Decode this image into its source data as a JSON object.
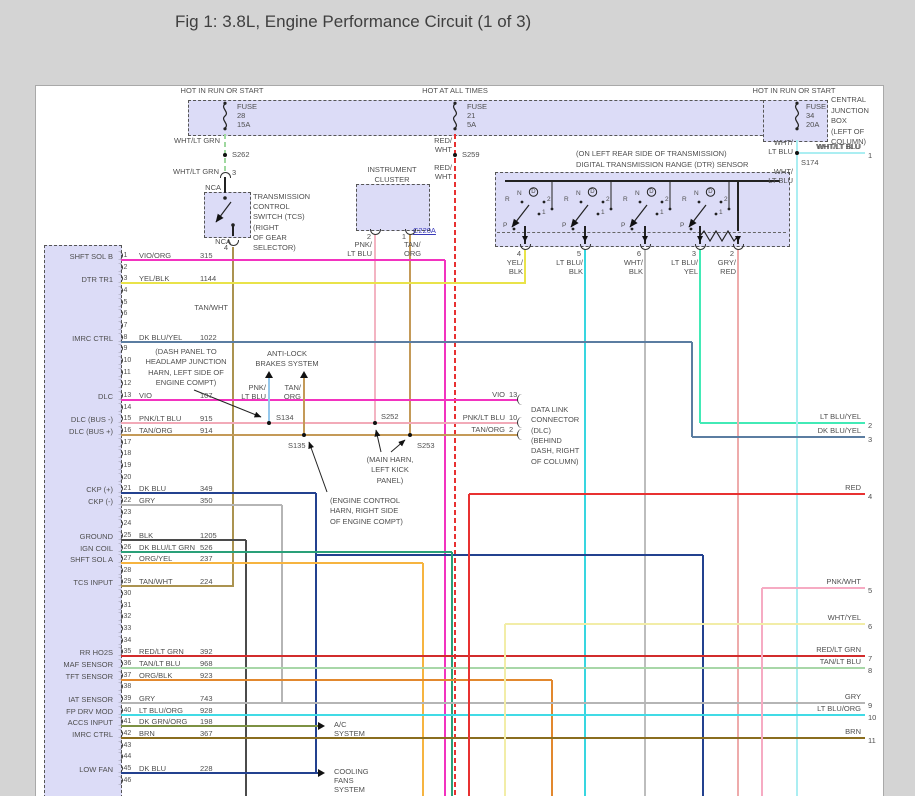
{
  "title": "Fig 1: 3.8L, Engine Performance Circuit (1 of 3)",
  "rails": [
    "HOT IN RUN OR START",
    "HOT AT ALL TIMES",
    "HOT IN RUN OR START"
  ],
  "fuses": [
    {
      "name": "FUSE",
      "num": "28",
      "amp": "15A"
    },
    {
      "name": "FUSE",
      "num": "21",
      "amp": "5A"
    },
    {
      "name": "FUSE",
      "num": "34",
      "amp": "20A"
    }
  ],
  "cjb": [
    "CENTRAL",
    "JUNCTION",
    "BOX",
    "(LEFT OF",
    "COLUMN)"
  ],
  "tcs": {
    "desc": [
      "TRANSMISSION",
      "CONTROL",
      "SWITCH (TCS)",
      "(RIGHT",
      "OF GEAR",
      "SELECTOR)"
    ],
    "nca": "NCA",
    "pin_top": "3",
    "pin_bottom": "4",
    "wire_top": "WHT/LT GRN",
    "vert_label": "TAN/WHT"
  },
  "red_wht": [
    "RED/",
    "WHT"
  ],
  "wht_lt_blu": [
    "WHT/",
    "LT BLU"
  ],
  "wht_lt_blu_h": "WHT/LT BLU",
  "instrument_cluster": {
    "title": [
      "INSTRUMENT",
      "CLUSTER"
    ],
    "connector": "C220A",
    "pins": [
      {
        "num": "2",
        "label": [
          "PNK/",
          "LT BLU"
        ]
      },
      {
        "num": "1",
        "label": [
          "TAN/",
          "ORG"
        ]
      }
    ]
  },
  "dtr": {
    "note": "(ON LEFT REAR SIDE OF TRANSMISSION)",
    "title": "DIGITAL TRANSMISSION RANGE (DTR) SENSOR",
    "positions": [
      "R",
      "N",
      "D",
      "2",
      "1",
      "P"
    ],
    "groups": 4,
    "pins": [
      {
        "num": "4",
        "label": [
          "YEL/",
          "BLK"
        ]
      },
      {
        "num": "5",
        "label": [
          "LT BLU/",
          "BLK"
        ]
      },
      {
        "num": "6",
        "label": [
          "WHT/",
          "BLK"
        ]
      },
      {
        "num": "3",
        "label": [
          "LT BLU/",
          "YEL"
        ]
      },
      {
        "num": "2",
        "label": [
          "GRY/",
          "RED"
        ]
      }
    ]
  },
  "splices": {
    "s262": "S262",
    "s259": "S259",
    "s174": "S174",
    "s134": "S134",
    "s135": "S135",
    "s252": "S252",
    "s253": "S253"
  },
  "abs": {
    "title": [
      "ANTI-LOCK",
      "BRAKES SYSTEM"
    ],
    "wires": [
      [
        "PNK/",
        "LT BLU"
      ],
      [
        "TAN/",
        "ORG"
      ]
    ]
  },
  "notes": {
    "dash_panel": [
      "(DASH PANEL TO",
      "HEADLAMP JUNCTION",
      "HARN, LEFT SIDE OF",
      "ENGINE COMPT)"
    ],
    "main_harn": [
      "(MAIN HARN,",
      "LEFT KICK",
      "PANEL)"
    ],
    "engine_control": [
      "(ENGINE CONTROL",
      "HARN, RIGHT SIDE",
      "OF ENGINE COMPT)"
    ]
  },
  "dlc": {
    "text": [
      "DATA LINK",
      "CONNECTOR",
      "(DLC)",
      "(BEHIND",
      "DASH, RIGHT",
      "OF COLUMN)"
    ],
    "pins": [
      {
        "wire": "VIO",
        "num": "13"
      },
      {
        "wire": "PNK/LT BLU",
        "num": "10"
      },
      {
        "wire": "TAN/ORG",
        "num": "2"
      }
    ]
  },
  "left_connector": {
    "pin_count": 46,
    "rows": [
      {
        "pin": 1,
        "label": "SHFT SOL B",
        "wire": "VIO/ORG",
        "circuit": "315",
        "color": "magenta"
      },
      {
        "pin": 3,
        "label": "DTR TR1",
        "wire": "YEL/BLK",
        "circuit": "1144",
        "color": "yellow"
      },
      {
        "pin": 8,
        "label": "IMRC CTRL",
        "wire": "DK BLU/YEL",
        "circuit": "1022",
        "color": "steel"
      },
      {
        "pin": 13,
        "label": "DLC",
        "wire": "VIO",
        "circuit": "107",
        "color": "magenta"
      },
      {
        "pin": 15,
        "label": "DLC (BUS -)",
        "wire": "PNK/LT BLU",
        "circuit": "915",
        "color": "pink"
      },
      {
        "pin": 16,
        "label": "DLC (BUS +)",
        "wire": "TAN/ORG",
        "circuit": "914",
        "color": "tan"
      },
      {
        "pin": 21,
        "label": "CKP (+)",
        "wire": "DK BLU",
        "circuit": "349",
        "color": "navy"
      },
      {
        "pin": 22,
        "label": "CKP (-)",
        "wire": "GRY",
        "circuit": "350",
        "color": "gray"
      },
      {
        "pin": 25,
        "label": "GROUND",
        "wire": "BLK",
        "circuit": "1205",
        "color": "black"
      },
      {
        "pin": 26,
        "label": "IGN COIL",
        "wire": "DK BLU/LT GRN",
        "circuit": "526",
        "color": "teal"
      },
      {
        "pin": 27,
        "label": "SHFT SOL A",
        "wire": "ORG/YEL",
        "circuit": "237",
        "color": "orange"
      },
      {
        "pin": 29,
        "label": "TCS INPUT",
        "wire": "TAN/WHT",
        "circuit": "224",
        "color": "tanwht"
      },
      {
        "pin": 35,
        "label": "RR HO2S",
        "wire": "RED/LT GRN",
        "circuit": "392",
        "color": "darkred"
      },
      {
        "pin": 36,
        "label": "MAF SENSOR",
        "wire": "TAN/LT BLU",
        "circuit": "968",
        "color": "palegreen"
      },
      {
        "pin": 37,
        "label": "TFT SENSOR",
        "wire": "ORG/BLK",
        "circuit": "923",
        "color": "orange2"
      },
      {
        "pin": 39,
        "label": "IAT SENSOR",
        "wire": "GRY",
        "circuit": "743",
        "color": "gray"
      },
      {
        "pin": 40,
        "label": "FP DRV MOD",
        "wire": "LT BLU/ORG",
        "circuit": "928",
        "color": "cyan"
      },
      {
        "pin": 41,
        "label": "ACCS INPUT",
        "wire": "DK GRN/ORG",
        "circuit": "198",
        "color": "olive"
      },
      {
        "pin": 42,
        "label": "IMRC CTRL",
        "wire": "BRN",
        "circuit": "367",
        "color": "brown"
      },
      {
        "pin": 45,
        "label": "LOW FAN",
        "wire": "DK BLU",
        "circuit": "228",
        "color": "navy"
      }
    ]
  },
  "right_edge": [
    {
      "num": "1",
      "label": "WHT/LT BLU"
    },
    {
      "num": "2",
      "label": "LT BLU/YEL"
    },
    {
      "num": "3",
      "label": "DK BLU/YEL"
    },
    {
      "num": "4",
      "label": "RED"
    },
    {
      "num": "5",
      "label": "PNK/WHT"
    },
    {
      "num": "6",
      "label": "WHT/YEL"
    },
    {
      "num": "7",
      "label": "RED/LT GRN"
    },
    {
      "num": "8",
      "label": "TAN/LT BLU"
    },
    {
      "num": "9",
      "label": "GRY"
    },
    {
      "num": "10",
      "label": "LT BLU/ORG"
    },
    {
      "num": "11",
      "label": "BRN"
    }
  ],
  "targets": {
    "ac": [
      "A/C",
      "SYSTEM"
    ],
    "cooling": [
      "COOLING",
      "FANS",
      "SYSTEM"
    ]
  },
  "colors": {
    "magenta": "#f233bf",
    "yellow": "#e9e34a",
    "steel": "#5b7da1",
    "pink": "#f2aab8",
    "tan": "#c49a58",
    "navy": "#23418f",
    "gray": "#b5b5b5",
    "black": "#4b4b4b",
    "teal": "#2aa079",
    "orange": "#f6b440",
    "tanwht": "#ab9350",
    "darkred": "#d22c2c",
    "palegreen": "#a8d7a8",
    "orange2": "#e2882e",
    "cyan": "#41dbe6",
    "olive": "#7d9143",
    "brown": "#8a6d1f",
    "red": "#e83131",
    "spring": "#42eab6",
    "salmon": "#eeabab",
    "palecyan": "#abeef2",
    "ltblublk": "#38d6e0",
    "whtblk": "#bdbdbd",
    "whtltgrn": "#9fd89f",
    "whtyel": "#f2eda8",
    "pnkwht": "#f6abc3",
    "absblue": "#95c8ec",
    "icpink": "#f3b4c2",
    "link": "#3a3ab8"
  }
}
